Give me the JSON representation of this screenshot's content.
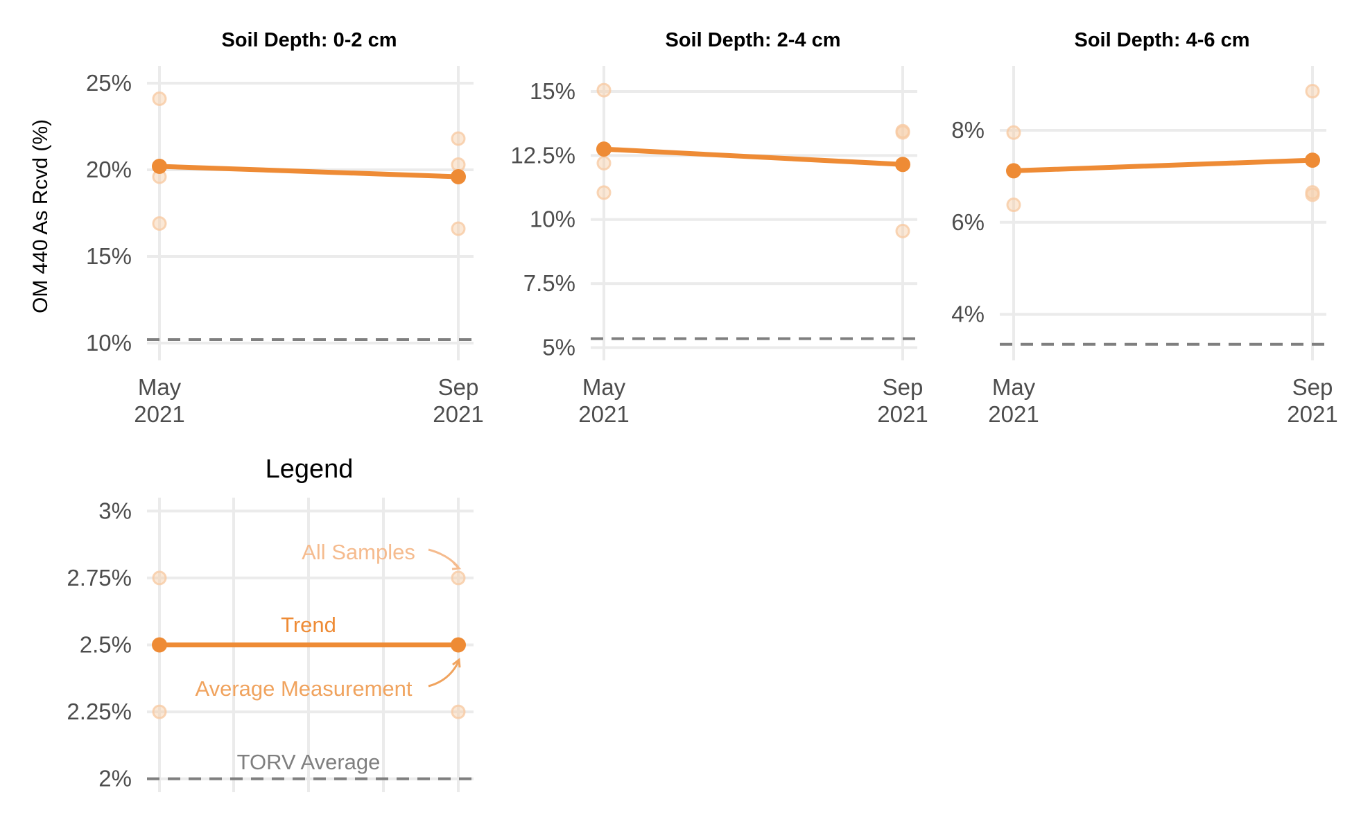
{
  "figure": {
    "ylabel": "OM 440 As Rcvd (%)",
    "colors": {
      "trend": "#EE8B35",
      "samples": "#F7CBA4",
      "reference": "#7F7F7F",
      "grid": "#EBEBEB",
      "samples_label": "#F5BB8E",
      "average_label": "#F0A35E",
      "torv_label": "#7F7F7F"
    }
  },
  "chart_data": [
    {
      "type": "line",
      "title": "Soil Depth: 0-2 cm",
      "x": [
        "May 2021",
        "Sep 2021"
      ],
      "x_ticks": [
        [
          "May",
          "2021"
        ],
        [
          "Sep",
          "2021"
        ]
      ],
      "ylim": [
        9,
        26
      ],
      "y_ticks": [
        10,
        15,
        20,
        25
      ],
      "y_tick_labels": [
        "10%",
        "15%",
        "20%",
        "25%"
      ],
      "grid": true,
      "series": [
        {
          "role": "trend",
          "values": [
            20.2,
            19.6
          ]
        },
        {
          "role": "samples",
          "points": [
            [
              0,
              24.1
            ],
            [
              0,
              19.6
            ],
            [
              0,
              16.9
            ],
            [
              1,
              21.8
            ],
            [
              1,
              20.3
            ],
            [
              1,
              16.6
            ]
          ]
        },
        {
          "role": "reference",
          "value": 10.2
        }
      ]
    },
    {
      "type": "line",
      "title": "Soil Depth: 2-4 cm",
      "x": [
        "May 2021",
        "Sep 2021"
      ],
      "x_ticks": [
        [
          "May",
          "2021"
        ],
        [
          "Sep",
          "2021"
        ]
      ],
      "ylim": [
        4.5,
        16
      ],
      "y_ticks": [
        5,
        7.5,
        10,
        12.5,
        15
      ],
      "y_tick_labels": [
        "5%",
        "7.5%",
        "10%",
        "12.5%",
        "15%"
      ],
      "grid": true,
      "series": [
        {
          "role": "trend",
          "values": [
            12.75,
            12.15
          ]
        },
        {
          "role": "samples",
          "points": [
            [
              0,
              15.05
            ],
            [
              0,
              12.2
            ],
            [
              0,
              11.05
            ],
            [
              1,
              13.45
            ],
            [
              1,
              13.4
            ],
            [
              1,
              9.55
            ]
          ]
        },
        {
          "role": "reference",
          "value": 5.35
        }
      ]
    },
    {
      "type": "line",
      "title": "Soil Depth: 4-6 cm",
      "x": [
        "May 2021",
        "Sep 2021"
      ],
      "x_ticks": [
        [
          "May",
          "2021"
        ],
        [
          "Sep",
          "2021"
        ]
      ],
      "ylim": [
        3,
        9.4
      ],
      "y_ticks": [
        4,
        6,
        8
      ],
      "y_tick_labels": [
        "4%",
        "6%",
        "8%"
      ],
      "grid": true,
      "series": [
        {
          "role": "trend",
          "values": [
            7.12,
            7.35
          ]
        },
        {
          "role": "samples",
          "points": [
            [
              0,
              7.95
            ],
            [
              0,
              6.38
            ],
            [
              1,
              8.85
            ],
            [
              1,
              6.65
            ],
            [
              1,
              6.6
            ]
          ]
        },
        {
          "role": "reference",
          "value": 3.35
        }
      ]
    },
    {
      "type": "line",
      "title": "Legend",
      "x": [
        "",
        ""
      ],
      "x_ticks": [],
      "ylim": [
        1.95,
        3.05
      ],
      "y_ticks": [
        2,
        2.25,
        2.5,
        2.75,
        3
      ],
      "y_tick_labels": [
        "2%",
        "2.25%",
        "2.5%",
        "2.75%",
        "3%"
      ],
      "grid": true,
      "series": [
        {
          "role": "trend",
          "values": [
            2.5,
            2.5
          ]
        },
        {
          "role": "samples",
          "points": [
            [
              0,
              2.75
            ],
            [
              0,
              2.25
            ],
            [
              1,
              2.75
            ],
            [
              1,
              2.25
            ]
          ]
        },
        {
          "role": "reference",
          "value": 2.0
        }
      ],
      "annotations": {
        "samples": "All Samples",
        "trend": "Trend",
        "average": "Average Measurement",
        "reference": "TORV Average"
      }
    }
  ]
}
